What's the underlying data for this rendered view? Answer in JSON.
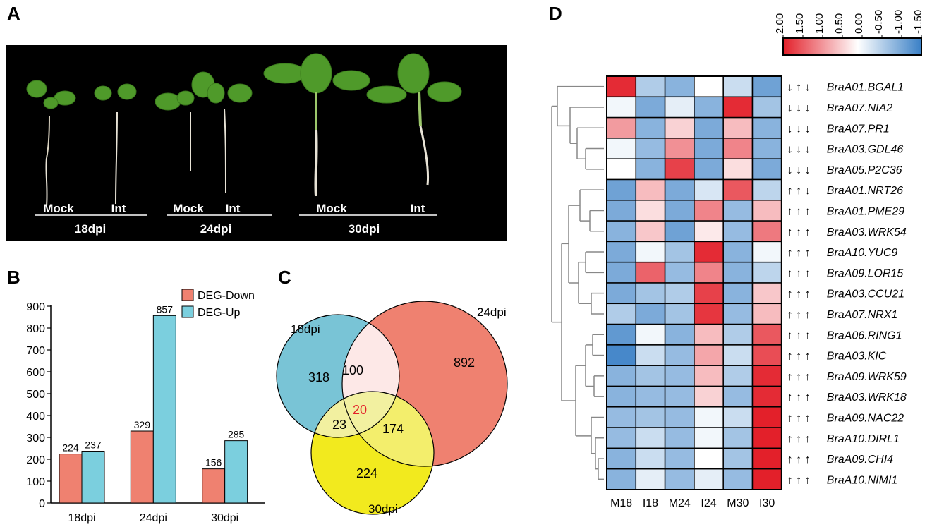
{
  "panels": {
    "a": "A",
    "b": "B",
    "c": "C",
    "d": "D"
  },
  "photo": {
    "groups": [
      {
        "labels": [
          "Mock",
          "Int"
        ],
        "timepoint": "18dpi"
      },
      {
        "labels": [
          "Mock",
          "Int"
        ],
        "timepoint": "24dpi"
      },
      {
        "labels": [
          "Mock",
          "Int"
        ],
        "timepoint": "30dpi"
      }
    ]
  },
  "colors": {
    "down": "#ef8170",
    "up": "#7bcfde",
    "venn18": "#79c4d6",
    "venn24": "#ef8170",
    "venn30": "#f2ea1e",
    "overlap18_24": "#fde8e7",
    "overlap_center": "#f2f0a0",
    "overlap24_30": "#f3ee6c",
    "heat_high": "#e3202a",
    "heat_mid": "#ffffff",
    "heat_low": "#3a80c6"
  },
  "chart_data": [
    {
      "type": "bar",
      "categories": [
        "18dpi",
        "24dpi",
        "30dpi"
      ],
      "series": [
        {
          "name": "DEG-Down",
          "values": [
            224,
            329,
            156
          ]
        },
        {
          "name": "DEG-Up",
          "values": [
            237,
            857,
            285
          ]
        }
      ],
      "ylim": [
        0,
        900
      ],
      "yticks": [
        0,
        100,
        200,
        300,
        400,
        500,
        600,
        700,
        800,
        900
      ],
      "legend": "top-right"
    },
    {
      "type": "venn",
      "sets": [
        "18dpi",
        "24dpi",
        "30dpi"
      ],
      "regions": {
        "only18": 318,
        "only24": 892,
        "only30": 224,
        "s18_24": 100,
        "s18_30": 23,
        "s24_30": 174,
        "all": 20
      }
    },
    {
      "type": "heatmap",
      "columns": [
        "M18",
        "I18",
        "M24",
        "I24",
        "M30",
        "I30"
      ],
      "colorbar_ticks": [
        "2.00",
        "1.50",
        "1.00",
        "0.50",
        "0.00",
        "-0.50",
        "-1.00",
        "-1.50"
      ],
      "rows": [
        {
          "gene": "BraA01.BGAL1",
          "arrows": "↓ ↑ ↓",
          "values": [
            1.9,
            -0.6,
            -0.9,
            0.0,
            -0.4,
            -1.1
          ]
        },
        {
          "gene": "BraA07.NIA2",
          "arrows": "↓ ↓ ↓",
          "values": [
            -0.1,
            -1.0,
            -0.2,
            -0.9,
            1.9,
            -0.7
          ]
        },
        {
          "gene": "BraA07.PR1",
          "arrows": "↓ ↓ ↓",
          "values": [
            0.9,
            -0.9,
            0.4,
            -1.0,
            0.6,
            -0.9
          ]
        },
        {
          "gene": "BraA03.GDL46",
          "arrows": "↓ ↓ ↓",
          "values": [
            -0.1,
            -0.8,
            1.0,
            -1.0,
            1.1,
            -0.9
          ]
        },
        {
          "gene": "BraA05.P2C36",
          "arrows": "↓ ↓ ↓",
          "values": [
            0.0,
            -0.9,
            1.7,
            -1.0,
            0.3,
            -1.0
          ]
        },
        {
          "gene": "BraA01.NRT26",
          "arrows": "↑ ↑ ↓",
          "values": [
            -1.1,
            0.6,
            -1.0,
            -0.3,
            1.5,
            -0.5
          ]
        },
        {
          "gene": "BraA01.PME29",
          "arrows": "↑ ↑ ↑",
          "values": [
            -1.0,
            0.3,
            -1.0,
            1.1,
            -0.8,
            0.6
          ]
        },
        {
          "gene": "BraA03.WRK54",
          "arrows": "↑ ↑ ↑",
          "values": [
            -0.9,
            0.5,
            -1.1,
            0.2,
            -0.8,
            1.2
          ]
        },
        {
          "gene": "BraA10.YUC9",
          "arrows": "↑ ↑ ↑",
          "values": [
            -1.0,
            -0.1,
            -0.7,
            1.9,
            -0.9,
            -0.1
          ]
        },
        {
          "gene": "BraA09.LOR15",
          "arrows": "↑ ↑ ↑",
          "values": [
            -1.0,
            1.4,
            -0.8,
            1.1,
            -0.9,
            -0.5
          ]
        },
        {
          "gene": "BraA03.CCU21",
          "arrows": "↑ ↑ ↑",
          "values": [
            -1.0,
            -0.7,
            -0.6,
            1.7,
            -0.9,
            0.5
          ]
        },
        {
          "gene": "BraA07.NRX1",
          "arrows": "↑ ↑ ↑",
          "values": [
            -0.6,
            -1.0,
            -0.7,
            1.8,
            -0.8,
            0.6
          ]
        },
        {
          "gene": "BraA06.RING1",
          "arrows": "↑ ↑ ↑",
          "values": [
            -1.2,
            -0.1,
            -0.9,
            0.6,
            -0.6,
            1.5
          ]
        },
        {
          "gene": "BraA03.KIC",
          "arrows": "↑ ↑ ↑",
          "values": [
            -1.4,
            -0.4,
            -0.8,
            0.8,
            -0.4,
            1.6
          ]
        },
        {
          "gene": "BraA09.WRK59",
          "arrows": "↑ ↑ ↑",
          "values": [
            -0.9,
            -0.7,
            -0.8,
            0.6,
            -0.6,
            1.9
          ]
        },
        {
          "gene": "BraA03.WRK18",
          "arrows": "↑ ↑ ↑",
          "values": [
            -0.9,
            -0.8,
            -0.8,
            0.4,
            -0.8,
            1.9
          ]
        },
        {
          "gene": "BraA09.NAC22",
          "arrows": "↑ ↑ ↑",
          "values": [
            -0.8,
            -0.7,
            -0.8,
            -0.1,
            -0.4,
            2.0
          ]
        },
        {
          "gene": "BraA10.DIRL1",
          "arrows": "↑ ↑ ↑",
          "values": [
            -0.8,
            -0.4,
            -0.8,
            -0.1,
            -0.7,
            2.0
          ]
        },
        {
          "gene": "BraA09.CHI4",
          "arrows": "↑ ↑ ↑",
          "values": [
            -0.9,
            -0.4,
            -0.8,
            0.0,
            -0.7,
            2.0
          ]
        },
        {
          "gene": "BraA10.NIMI1",
          "arrows": "↑ ↑ ↑",
          "values": [
            -0.9,
            -0.2,
            -0.8,
            -0.2,
            -0.8,
            2.0
          ]
        }
      ]
    }
  ]
}
